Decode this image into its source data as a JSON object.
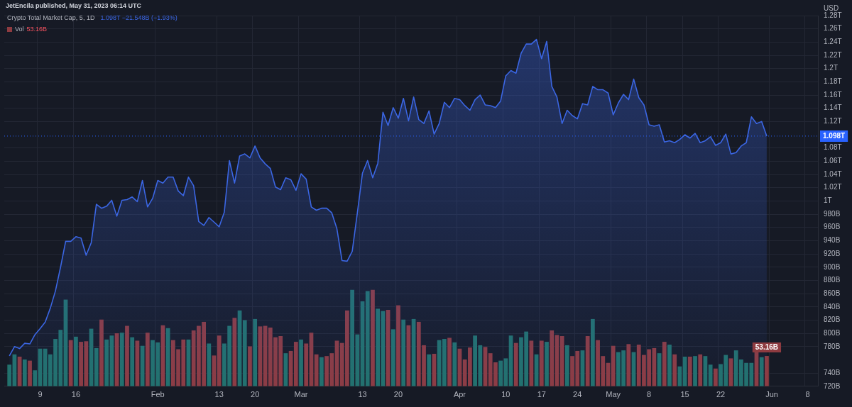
{
  "chart_data": {
    "type": "area",
    "title": "Crypto Total Market Cap, 5, 1D",
    "subtitle": "1.098T −21.548B (−1.93%)",
    "ylabel": "USD",
    "annotations": [
      "JetEncila published, May 31, 2023 06:14 UTC"
    ],
    "categories": [
      null,
      null,
      null,
      null,
      null,
      null,
      null,
      "9",
      null,
      null,
      null,
      null,
      null,
      null,
      "16",
      null,
      null,
      null,
      null,
      null,
      null,
      null,
      null,
      null,
      null,
      null,
      null,
      null,
      null,
      null,
      "Feb",
      null,
      null,
      null,
      null,
      null,
      null,
      null,
      null,
      null,
      null,
      null,
      "13",
      null,
      null,
      null,
      null,
      null,
      null,
      "20",
      null,
      null,
      null,
      null,
      null,
      null,
      null,
      null,
      "Mar",
      null,
      null,
      null,
      null,
      null,
      null,
      null,
      null,
      null,
      null,
      null,
      "13",
      null,
      null,
      null,
      null,
      null,
      null,
      "20",
      null,
      null,
      null,
      null,
      null,
      null,
      null,
      null,
      null,
      null,
      null,
      "Apr",
      null,
      null,
      null,
      null,
      null,
      null,
      null,
      null,
      "10",
      null,
      null,
      null,
      null,
      null,
      null,
      "17",
      null,
      null,
      null,
      null,
      null,
      null,
      "24",
      null,
      null,
      null,
      null,
      null,
      null,
      "May",
      null,
      null,
      null,
      null,
      null,
      null,
      "8",
      null,
      null,
      null,
      null,
      null,
      null,
      "15",
      null,
      null,
      null,
      null,
      null,
      null,
      "22",
      null,
      null,
      null,
      null,
      null,
      null,
      null,
      null,
      null,
      "Jun",
      null,
      null,
      null,
      null,
      null,
      null,
      "8",
      null,
      null
    ],
    "series": [
      {
        "color": "#3b66e3",
        "values": [
          null,
          766000000000.0,
          780000000000.0,
          777000000000.0,
          785000000000.0,
          784000000000.0,
          798000000000.0,
          807000000000.0,
          817000000000.0,
          838000000000.0,
          864000000000.0,
          900000000000.0,
          939000000000.0,
          939000000000.0,
          946000000000.0,
          944000000000.0,
          918000000000.0,
          937000000000.0,
          995000000000.0,
          989000000000.0,
          992000000000.0,
          1001000000000.0,
          977000000000.0,
          1001000000000.0,
          1002000000000.0,
          1006000000000.0,
          999000000000.0,
          1031000000000.0,
          991000000000.0,
          1004000000000.0,
          1031000000000.0,
          1027000000000.0,
          1036000000000.0,
          1036000000000.0,
          1015000000000.0,
          1008000000000.0,
          1036000000000.0,
          1023000000000.0,
          969000000000.0,
          963000000000.0,
          975000000000.0,
          968000000000.0,
          961000000000.0,
          983000000000.0,
          1061000000000.0,
          1027000000000.0,
          1068000000000.0,
          1071000000000.0,
          1065000000000.0,
          1083000000000.0,
          1065000000000.0,
          1056000000000.0,
          1049000000000.0,
          1021000000000.0,
          1017000000000.0,
          1035000000000.0,
          1032000000000.0,
          1016000000000.0,
          1041000000000.0,
          1033000000000.0,
          991000000000.0,
          986000000000.0,
          989000000000.0,
          989000000000.0,
          982000000000.0,
          958000000000.0,
          910000000000.0,
          909000000000.0,
          924000000000.0,
          982000000000.0,
          1042000000000.0,
          1061000000000.0,
          1035000000000.0,
          1057000000000.0,
          1134000000000.0,
          1114000000000.0,
          1141000000000.0,
          1125000000000.0,
          1155000000000.0,
          1121000000000.0,
          1157000000000.0,
          1123000000000.0,
          1117000000000.0,
          1136000000000.0,
          1101000000000.0,
          1117000000000.0,
          1149000000000.0,
          1141000000000.0,
          1155000000000.0,
          1153000000000.0,
          1144000000000.0,
          1137000000000.0,
          1153000000000.0,
          1160000000000.0,
          1145000000000.0,
          1144000000000.0,
          1141000000000.0,
          1151000000000.0,
          1189000000000.0,
          1197000000000.0,
          1193000000000.0,
          1223000000000.0,
          1237000000000.0,
          1237000000000.0,
          1244000000000.0,
          1215000000000.0,
          1241000000000.0,
          1173000000000.0,
          1157000000000.0,
          1117000000000.0,
          1137000000000.0,
          1129000000000.0,
          1124000000000.0,
          1147000000000.0,
          1145000000000.0,
          1173000000000.0,
          1168000000000.0,
          1168000000000.0,
          1163000000000.0,
          1130000000000.0,
          1148000000000.0,
          1161000000000.0,
          1153000000000.0,
          1184000000000.0,
          1156000000000.0,
          1145000000000.0,
          1115000000000.0,
          1113000000000.0,
          1115000000000.0,
          1089000000000.0,
          1091000000000.0,
          1088000000000.0,
          1093000000000.0,
          1100000000000.0,
          1095000000000.0,
          1102000000000.0,
          1088000000000.0,
          1091000000000.0,
          1097000000000.0,
          1084000000000.0,
          1088000000000.0,
          1101000000000.0,
          1071000000000.0,
          1073000000000.0,
          1083000000000.0,
          1088000000000.0,
          1127000000000.0,
          1117000000000.0,
          1120000000000.0,
          1098000000000.0,
          null,
          null,
          null,
          null,
          null,
          null,
          null,
          null,
          null,
          null
        ]
      },
      {
        "type": "bar",
        "name": "Vol",
        "axis": "y2",
        "color": "#8e3b40",
        "values": [
          null,
          38000000000.0,
          56000000000.0,
          52000000000.0,
          47000000000.0,
          45000000000.0,
          28000000000.0,
          66000000000.0,
          66000000000.0,
          56000000000.0,
          83000000000.0,
          99000000000.0,
          152000000000.0,
          81000000000.0,
          87000000000.0,
          78000000000.0,
          79000000000.0,
          101000000000.0,
          67000000000.0,
          117000000000.0,
          82000000000.0,
          89000000000.0,
          93000000000.0,
          94000000000.0,
          106000000000.0,
          86000000000.0,
          80000000000.0,
          71000000000.0,
          94000000000.0,
          81000000000.0,
          77000000000.0,
          107000000000.0,
          102000000000.0,
          81000000000.0,
          65000000000.0,
          82000000000.0,
          82000000000.0,
          98000000000.0,
          106000000000.0,
          113000000000.0,
          75000000000.0,
          54000000000.0,
          89000000000.0,
          75000000000.0,
          106000000000.0,
          120000000000.0,
          133000000000.0,
          116000000000.0,
          70000000000.0,
          118000000000.0,
          105000000000.0,
          106000000000.0,
          103000000000.0,
          86000000000.0,
          88000000000.0,
          58000000000.0,
          62000000000.0,
          78000000000.0,
          82000000000.0,
          75000000000.0,
          94000000000.0,
          56000000000.0,
          51000000000.0,
          53000000000.0,
          58000000000.0,
          80000000000.0,
          76000000000.0,
          133000000000.0,
          169000000000.0,
          91000000000.0,
          149000000000.0,
          167000000000.0,
          169000000000.0,
          136000000000.0,
          132000000000.0,
          134000000000.0,
          100000000000.0,
          142000000000.0,
          117000000000.0,
          107000000000.0,
          118000000000.0,
          113000000000.0,
          72000000000.0,
          56000000000.0,
          57000000000.0,
          81000000000.0,
          83000000000.0,
          85000000000.0,
          77000000000.0,
          66000000000.0,
          47000000000.0,
          68000000000.0,
          89000000000.0,
          72000000000.0,
          69000000000.0,
          58000000000.0,
          42000000000.0,
          45000000000.0,
          49000000000.0,
          89000000000.0,
          76000000000.0,
          86000000000.0,
          96000000000.0,
          80000000000.0,
          56000000000.0,
          80000000000.0,
          78000000000.0,
          98000000000.0,
          90000000000.0,
          88000000000.0,
          72000000000.0,
          53000000000.0,
          62000000000.0,
          63000000000.0,
          88000000000.0,
          118000000000.0,
          81000000000.0,
          53000000000.0,
          41000000000.0,
          71000000000.0,
          60000000000.0,
          63000000000.0,
          74000000000.0,
          60000000000.0,
          73000000000.0,
          55000000000.0,
          65000000000.0,
          67000000000.0,
          58000000000.0,
          78000000000.0,
          73000000000.0,
          56000000000.0,
          35000000000.0,
          52000000000.0,
          52000000000.0,
          53000000000.0,
          56000000000.0,
          53000000000.0,
          38000000000.0,
          31000000000.0,
          39000000000.0,
          55000000000.0,
          49000000000.0,
          63000000000.0,
          47000000000.0,
          41000000000.0,
          41000000000.0,
          60000000000.0,
          51000000000.0,
          53160000000.0,
          null,
          null,
          null,
          null,
          null,
          null,
          null,
          null,
          null,
          null
        ],
        "value_labels": [
          null,
          null,
          null,
          null,
          null,
          null,
          null,
          null,
          null,
          null,
          null,
          null,
          null,
          null,
          null,
          null,
          null,
          null,
          null,
          null,
          null,
          null,
          null,
          null,
          null,
          null,
          null,
          null,
          null,
          null,
          null,
          null,
          null,
          null,
          null,
          null,
          null,
          null,
          null,
          null,
          null,
          null,
          null,
          null,
          null,
          null,
          null,
          null,
          null,
          null,
          null,
          null,
          null,
          null,
          null,
          null,
          null,
          null,
          null,
          null,
          null,
          null,
          null,
          null,
          null,
          null,
          null,
          null,
          null,
          null,
          null,
          null,
          null,
          null,
          null,
          null,
          null,
          null,
          null,
          null,
          null,
          null,
          null,
          null,
          null,
          null,
          null,
          null,
          null,
          null,
          null,
          null,
          null,
          null,
          null,
          null,
          null,
          null,
          null,
          null,
          null,
          null,
          null,
          null,
          null,
          null,
          null,
          null,
          null,
          null,
          null,
          null,
          null,
          null,
          null,
          null,
          null,
          null,
          null,
          null,
          null,
          null,
          null,
          null,
          null,
          null,
          null,
          null,
          null,
          null,
          null,
          null,
          null,
          null,
          null,
          null,
          null,
          null,
          null,
          null,
          null,
          null,
          null,
          null,
          null,
          null,
          null,
          null,
          null,
          "53.16B",
          null,
          null,
          null,
          null,
          null,
          null,
          null,
          null,
          null,
          null
        ],
        "colors": [
          null,
          "#22716b",
          "#22716b",
          "#8e3b40",
          "#22716b",
          "#8e3b40",
          "#22716b",
          "#22716b",
          "#22716b",
          "#22716b",
          "#22716b",
          "#22716b",
          "#22716b",
          "#8e3b40",
          "#22716b",
          "#8e3b40",
          "#8e3b40",
          "#22716b",
          "#22716b",
          "#8e3b40",
          "#22716b",
          "#22716b",
          "#8e3b40",
          "#22716b",
          "#8e3b40",
          "#22716b",
          "#8e3b40",
          "#22716b",
          "#8e3b40",
          "#22716b",
          "#22716b",
          "#8e3b40",
          "#22716b",
          "#8e3b40",
          "#8e3b40",
          "#8e3b40",
          "#22716b",
          "#8e3b40",
          "#8e3b40",
          "#8e3b40",
          "#22716b",
          "#8e3b40",
          "#8e3b40",
          "#22716b",
          "#22716b",
          "#8e3b40",
          "#22716b",
          "#22716b",
          "#8e3b40",
          "#22716b",
          "#8e3b40",
          "#8e3b40",
          "#8e3b40",
          "#8e3b40",
          "#8e3b40",
          "#22716b",
          "#8e3b40",
          "#8e3b40",
          "#22716b",
          "#8e3b40",
          "#8e3b40",
          "#8e3b40",
          "#22716b",
          "#8e3b40",
          "#8e3b40",
          "#8e3b40",
          "#8e3b40",
          "#8e3b40",
          "#22716b",
          "#22716b",
          "#22716b",
          "#22716b",
          "#8e3b40",
          "#22716b",
          "#22716b",
          "#8e3b40",
          "#22716b",
          "#8e3b40",
          "#22716b",
          "#8e3b40",
          "#22716b",
          "#8e3b40",
          "#8e3b40",
          "#22716b",
          "#8e3b40",
          "#22716b",
          "#22716b",
          "#8e3b40",
          "#22716b",
          "#8e3b40",
          "#8e3b40",
          "#8e3b40",
          "#22716b",
          "#22716b",
          "#8e3b40",
          "#8e3b40",
          "#8e3b40",
          "#22716b",
          "#22716b",
          "#22716b",
          "#8e3b40",
          "#22716b",
          "#22716b",
          "#8e3b40",
          "#22716b",
          "#8e3b40",
          "#22716b",
          "#8e3b40",
          "#8e3b40",
          "#8e3b40",
          "#22716b",
          "#8e3b40",
          "#8e3b40",
          "#22716b",
          "#8e3b40",
          "#22716b",
          "#8e3b40",
          "#8e3b40",
          "#8e3b40",
          "#8e3b40",
          "#22716b",
          "#22716b",
          "#8e3b40",
          "#22716b",
          "#8e3b40",
          "#8e3b40",
          "#8e3b40",
          "#8e3b40",
          "#22716b",
          "#8e3b40",
          "#22716b",
          "#8e3b40",
          "#22716b",
          "#22716b",
          "#8e3b40",
          "#22716b",
          "#8e3b40",
          "#22716b",
          "#22716b",
          "#8e3b40",
          "#22716b",
          "#22716b",
          "#8e3b40",
          "#22716b",
          "#22716b",
          "#22716b",
          "#22716b",
          "#8e3b40",
          "#22716b",
          "#8e3b40",
          null,
          null,
          null,
          null,
          null,
          null,
          null,
          null,
          null,
          null
        ]
      }
    ],
    "ylim": [
      720000000000.0,
      1280000000000.0
    ],
    "yticks": [
      {
        "value": 720000000000.0,
        "label": "720B"
      },
      {
        "value": 740000000000.0,
        "label": "740B"
      },
      {
        "value": 780000000000.0,
        "label": "780B"
      },
      {
        "value": 800000000000.0,
        "label": "800B"
      },
      {
        "value": 820000000000.0,
        "label": "820B"
      },
      {
        "value": 840000000000.0,
        "label": "840B"
      },
      {
        "value": 860000000000.0,
        "label": "860B"
      },
      {
        "value": 880000000000.0,
        "label": "880B"
      },
      {
        "value": 900000000000.0,
        "label": "900B"
      },
      {
        "value": 920000000000.0,
        "label": "920B"
      },
      {
        "value": 940000000000.0,
        "label": "940B"
      },
      {
        "value": 960000000000.0,
        "label": "960B"
      },
      {
        "value": 980000000000.0,
        "label": "980B"
      },
      {
        "value": 1000000000000.0,
        "label": "1T"
      },
      {
        "value": 1020000000000.0,
        "label": "1.02T"
      },
      {
        "value": 1040000000000.0,
        "label": "1.04T"
      },
      {
        "value": 1060000000000.0,
        "label": "1.06T"
      },
      {
        "value": 1080000000000.0,
        "label": "1.08T"
      },
      {
        "value": 1120000000000.0,
        "label": "1.12T"
      },
      {
        "value": 1140000000000.0,
        "label": "1.14T"
      },
      {
        "value": 1160000000000.0,
        "label": "1.16T"
      },
      {
        "value": 1180000000000.0,
        "label": "1.18T"
      },
      {
        "value": 1200000000000.0,
        "label": "1.2T"
      },
      {
        "value": 1220000000000.0,
        "label": "1.22T"
      },
      {
        "value": 1240000000000.0,
        "label": "1.24T"
      },
      {
        "value": 1260000000000.0,
        "label": "1.26T"
      },
      {
        "value": 1280000000000.0,
        "label": "1.28T"
      }
    ],
    "y2lim": [
      0,
      650000000000.0
    ],
    "ref_lines": [
      {
        "axis": "y",
        "value": 1098000000000.0,
        "label": "1.098T",
        "color": "#2962ff",
        "line_style": "dotted"
      }
    ],
    "grid": true,
    "legend": "top left",
    "marker": "none",
    "line_style": "solid"
  }
}
